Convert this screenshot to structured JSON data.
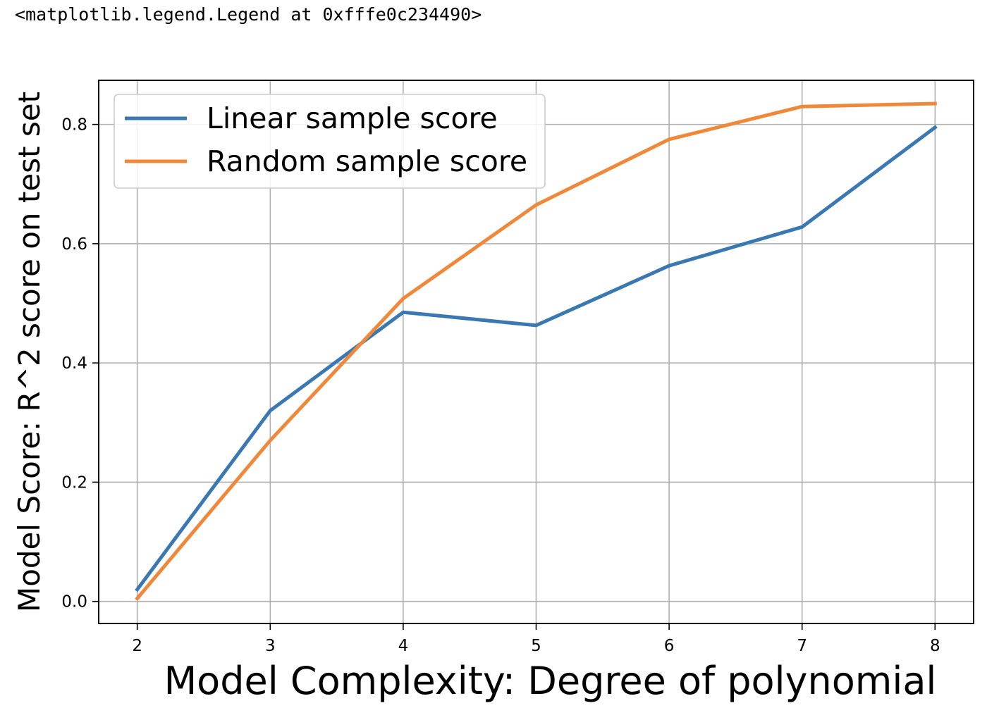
{
  "output": {
    "repr_text": "<matplotlib.legend.Legend at 0xfffe0c234490>"
  },
  "colors": {
    "linear": "#3a78b2",
    "random": "#f0883a",
    "grid": "#b0b0b0",
    "frame": "#000000",
    "legend_border": "#cccccc"
  },
  "chart_data": {
    "type": "line",
    "title": "",
    "xlabel": "Model Complexity: Degree of polynomial",
    "ylabel": "Model Score: R^2 score on test set",
    "x": [
      2,
      3,
      4,
      5,
      6,
      7,
      8
    ],
    "xticks": [
      "2",
      "3",
      "4",
      "5",
      "6",
      "7",
      "8"
    ],
    "yticks": [
      "0.0",
      "0.2",
      "0.4",
      "0.6",
      "0.8"
    ],
    "ytick_values": [
      0.0,
      0.2,
      0.4,
      0.6,
      0.8
    ],
    "xlim": [
      1.71,
      8.29
    ],
    "ylim": [
      -0.037,
      0.874
    ],
    "grid": true,
    "legend_position": "upper-left",
    "series": [
      {
        "name": "Linear sample score",
        "color_key": "linear",
        "values": [
          0.02,
          0.32,
          0.485,
          0.463,
          0.563,
          0.628,
          0.795
        ]
      },
      {
        "name": "Random sample score",
        "color_key": "random",
        "values": [
          0.005,
          0.27,
          0.508,
          0.665,
          0.775,
          0.83,
          0.835
        ]
      }
    ]
  }
}
